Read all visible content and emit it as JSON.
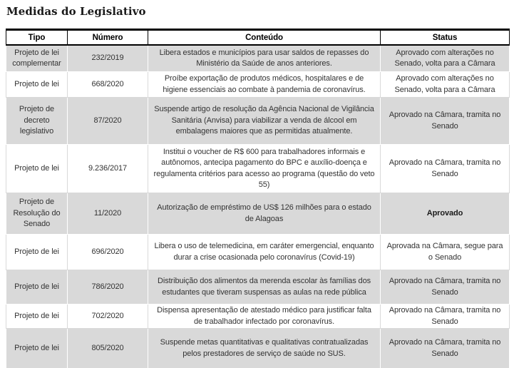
{
  "page": {
    "title": "Medidas do Legislativo"
  },
  "colors": {
    "band_gray": "#d9d9d9",
    "rule_black": "#000000",
    "body_text": "#333333"
  },
  "table": {
    "columns": [
      "Tipo",
      "Número",
      "Conteúdo",
      "Status"
    ],
    "rows": [
      {
        "tipo": "Projeto de lei complementar",
        "numero": "232/2019",
        "conteudo": "Libera estados e municípios para usar saldos de repasses do Ministério da Saúde de anos anteriores.",
        "status": "Aprovado com alterações no Senado, volta para a Câmara",
        "status_bold": false
      },
      {
        "tipo": "Projeto de lei",
        "numero": "668/2020",
        "conteudo": "Proíbe exportação de produtos médicos, hospitalares e de higiene essenciais ao combate à pandemia de coronavírus.",
        "status": "Aprovado com alterações no Senado, volta para a Câmara",
        "status_bold": false
      },
      {
        "tipo": "Projeto de decreto legislativo",
        "numero": "87/2020",
        "conteudo": "Suspende artigo de resolução da Agência Nacional de Vigilância Sanitária (Anvisa) para viabilizar a venda de álcool em embalagens maiores que as permitidas atualmente.",
        "status": "Aprovado na Câmara, tramita no Senado",
        "status_bold": false
      },
      {
        "tipo": "Projeto de lei",
        "numero": "9.236/2017",
        "conteudo": "Institui o voucher de R$ 600 para trabalhadores informais e autônomos, antecipa pagamento do BPC e auxílio-doença e regulamenta critérios para acesso ao programa (questão do veto 55)",
        "status": "Aprovado na Câmara, tramita no Senado",
        "status_bold": false
      },
      {
        "tipo": "Projeto de Resolução do Senado",
        "numero": "11/2020",
        "conteudo": "Autorização de empréstimo de US$ 126 milhões para o estado de Alagoas",
        "status": "Aprovado",
        "status_bold": true
      },
      {
        "tipo": "Projeto de lei",
        "numero": "696/2020",
        "conteudo": "Libera o uso de telemedicina, em caráter emergencial, enquanto durar a crise ocasionada pelo coronavírus (Covid-19)",
        "status": "Aprovada na Câmara, segue para o Senado",
        "status_bold": false
      },
      {
        "tipo": "Projeto de lei",
        "numero": "786/2020",
        "conteudo": "Distribuição dos alimentos da merenda escolar às famílias dos estudantes que tiveram suspensas as aulas na rede pública",
        "status": "Aprovado na Câmara, tramita no Senado",
        "status_bold": false
      },
      {
        "tipo": "Projeto de lei",
        "numero": "702/2020",
        "conteudo": "Dispensa apresentação de atestado médico para justificar falta de trabalhador infectado por coronavírus.",
        "status": "Aprovado na Câmara, tramita no Senado",
        "status_bold": false
      },
      {
        "tipo": "Projeto de lei",
        "numero": "805/2020",
        "conteudo": "Suspende metas quantitativas e qualitativas contratualizadas pelos prestadores de serviço de saúde no SUS.",
        "status": "Aprovado na Câmara, tramita no Senado",
        "status_bold": false
      }
    ]
  }
}
